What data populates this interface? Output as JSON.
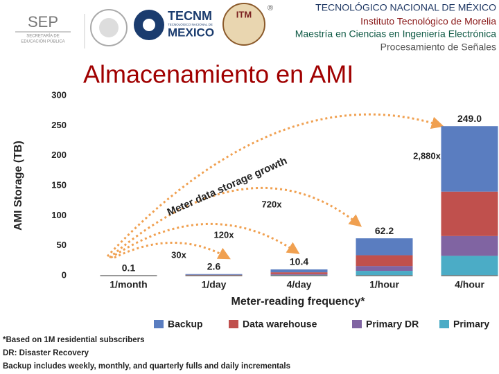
{
  "header": {
    "logos": {
      "sep": "SEP",
      "sep_sub1": "SECRETARÍA DE",
      "sep_sub2": "EDUCACIÓN PÚBLICA",
      "tecnm": "TECNM",
      "tecnm_sub": "TECNOLÓGICO NACIONAL DE",
      "mexico": "MEXICO",
      "itm": "ITM",
      "registered": "®"
    },
    "lines": [
      "TECNOLÓGICO NACIONAL DE MÉXICO",
      "Instituto Tecnológico de Morelia",
      "Maestría en Ciencias en Ingeniería Electrónica",
      "Procesamiento de Señales"
    ]
  },
  "slide_title": "Almacenamiento en AMI",
  "chart_data": {
    "type": "stacked_bar",
    "y_label": "AMI Storage (TB)",
    "x_label": "Meter-reading frequency*",
    "categories": [
      "1/month",
      "1/day",
      "4/day",
      "1/hour",
      "4/hour"
    ],
    "series": [
      {
        "name": "Backup",
        "color": "#5a7dc0",
        "values": [
          0.05,
          1.2,
          4.8,
          28.2,
          109
        ]
      },
      {
        "name": "Data warehouse",
        "color": "#c0504d",
        "values": [
          0.03,
          0.8,
          3.0,
          18,
          74
        ]
      },
      {
        "name": "Primary DR",
        "color": "#8064a2",
        "values": [
          0.01,
          0.3,
          1.3,
          8,
          33
        ]
      },
      {
        "name": "Primary",
        "color": "#4bacc6",
        "values": [
          0.01,
          0.3,
          1.3,
          8,
          33
        ]
      }
    ],
    "totals": [
      0.1,
      2.6,
      10.4,
      62.2,
      249
    ],
    "total_labels": [
      "0.1",
      "2.6",
      "10.4",
      "62.2",
      "249.0"
    ],
    "ylim": [
      0,
      300
    ],
    "yticks": [
      0,
      50,
      100,
      150,
      200,
      250,
      300
    ],
    "growth_label": "Meter data storage growth",
    "growth_factors": [
      "30x",
      "120x",
      "720x",
      "2,880x"
    ],
    "legend": "bottom"
  },
  "footnotes": [
    "*Based on 1M residential subscribers",
    "DR: Disaster Recovery",
    "Backup includes weekly, monthly, and quarterly fulls and daily incrementals"
  ]
}
